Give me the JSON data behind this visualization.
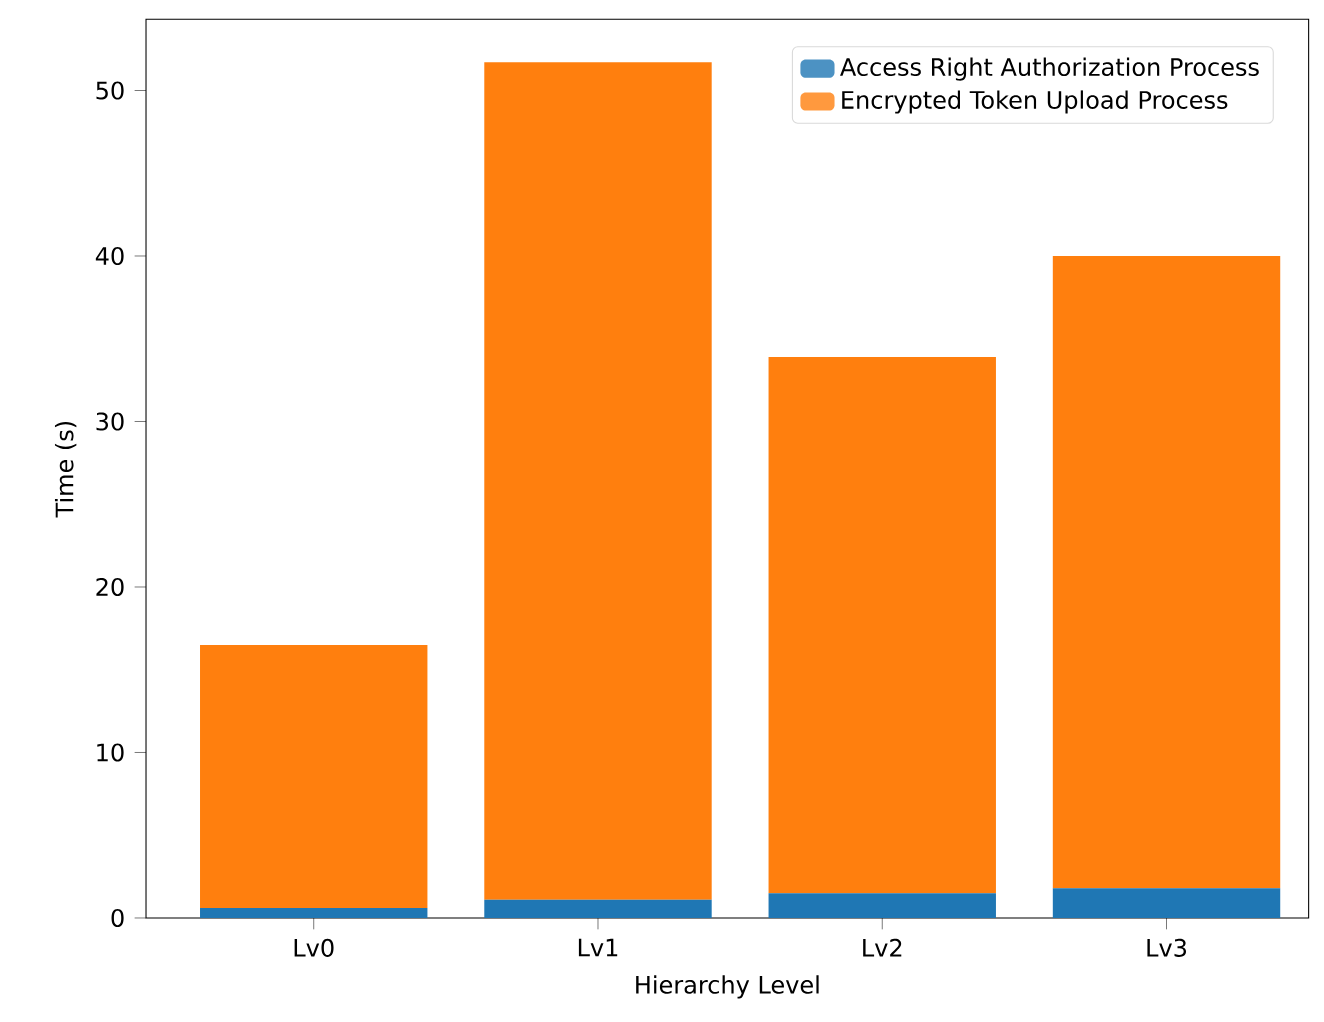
{
  "chart_data": {
    "type": "bar",
    "stacked": true,
    "xlabel": "Hierarchy Level",
    "ylabel": "Time (s)",
    "categories": [
      "Lv0",
      "Lv1",
      "Lv2",
      "Lv3"
    ],
    "series": [
      {
        "name": "Access Right Authorization Process",
        "color": "#1f77b4",
        "values": [
          0.6,
          1.1,
          1.5,
          1.8
        ]
      },
      {
        "name": "Encrypted Token Upload Process",
        "color": "#ff7f0e",
        "values": [
          15.9,
          50.6,
          32.4,
          38.2
        ]
      }
    ],
    "ylim": [
      0,
      54.3
    ],
    "yticks": [
      0,
      10,
      20,
      30,
      40,
      50
    ],
    "legend": "top right",
    "grid": false
  }
}
